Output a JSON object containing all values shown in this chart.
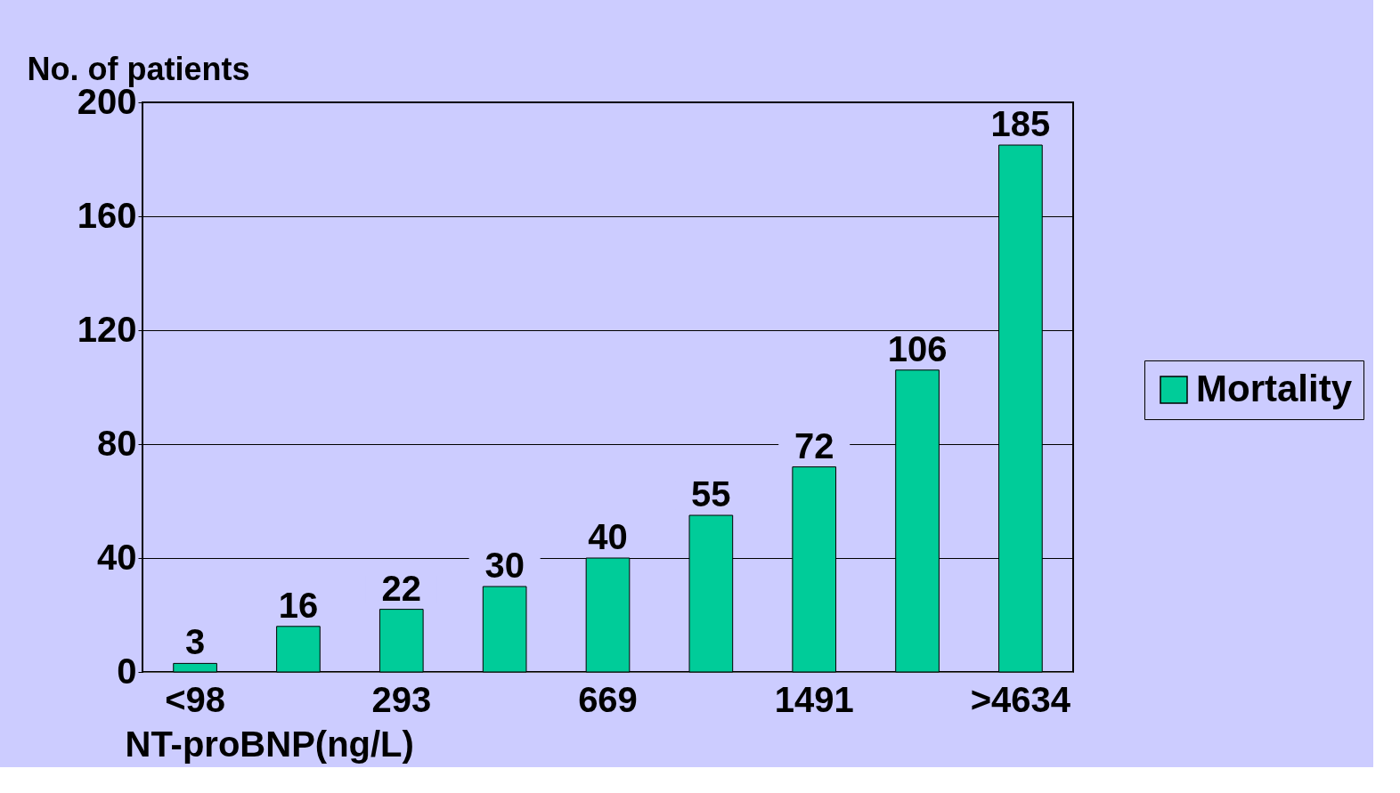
{
  "chart_data": {
    "type": "bar",
    "xlabel": "NT-proBNP(ng/L)",
    "ylabel": "No. of patients",
    "categories": [
      "<98",
      null,
      "293",
      null,
      "669",
      null,
      "1491",
      null,
      ">4634"
    ],
    "series": [
      {
        "name": "Mortality",
        "color": "#00cc99",
        "values": [
          3,
          16,
          22,
          30,
          40,
          55,
          72,
          106,
          185
        ]
      }
    ],
    "ylim": [
      0,
      200
    ],
    "yticks": [
      0,
      40,
      80,
      120,
      160,
      200
    ],
    "grid": "y",
    "legend": "right",
    "data_labels": true
  }
}
